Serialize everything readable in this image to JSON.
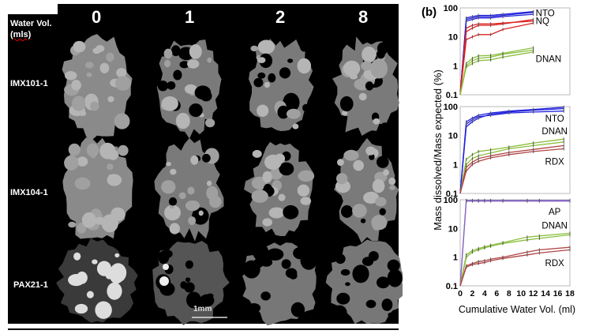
{
  "figure": {
    "corner_label": "Water Vol.",
    "corner_unit": "(mls)",
    "columns": [
      "0",
      "1",
      "2",
      "8"
    ],
    "rows": [
      "IMX101-1",
      "IMX104-1",
      "PAX21-1"
    ],
    "scale_bar": "1mm",
    "panel_label": "(b)"
  },
  "chart_data": [
    {
      "type": "line",
      "yscale": "log",
      "ylim": [
        0.1,
        100
      ],
      "xlim": [
        0,
        18
      ],
      "yticks": [
        "0.1",
        "1",
        "10",
        "100"
      ],
      "ylabel": "Mass dissolved/Mass expected (%)",
      "series": [
        {
          "name": "NTO",
          "color": "#2222dd",
          "x": [
            0,
            1,
            2,
            3,
            5,
            7,
            12
          ],
          "replicates": [
            [
              0.1,
              40,
              45,
              50,
              50,
              55,
              70
            ],
            [
              0.1,
              45,
              50,
              55,
              55,
              60,
              75
            ],
            [
              0.1,
              35,
              40,
              45,
              45,
              50,
              60
            ]
          ]
        },
        {
          "name": "NQ",
          "color": "#dd2222",
          "x": [
            0,
            1,
            2,
            3,
            5,
            7,
            12
          ],
          "replicates": [
            [
              0.1,
              8,
              10,
              12,
              12,
              18,
              30
            ],
            [
              0.1,
              15,
              20,
              25,
              25,
              28,
              40
            ],
            [
              0.1,
              20,
              25,
              28,
              28,
              30,
              35
            ]
          ]
        },
        {
          "name": "DNAN",
          "color": "#8cbf3f",
          "x": [
            0,
            1,
            2,
            3,
            5,
            7,
            12
          ],
          "replicates": [
            [
              0.1,
              0.9,
              1.2,
              1.5,
              1.6,
              2,
              3
            ],
            [
              0.1,
              1.2,
              1.8,
              2.2,
              2.3,
              2.7,
              4.2
            ],
            [
              0.1,
              1,
              1.5,
              1.8,
              2,
              2.5,
              3.5
            ]
          ]
        }
      ]
    },
    {
      "type": "line",
      "yscale": "log",
      "ylim": [
        0.1,
        100
      ],
      "xlim": [
        0,
        18
      ],
      "yticks": [
        "0.1",
        "1",
        "10",
        "100"
      ],
      "series": [
        {
          "name": "NTO",
          "color": "#2222dd",
          "x": [
            0,
            1,
            2,
            3,
            5,
            8,
            12,
            17
          ],
          "replicates": [
            [
              0.1,
              20,
              30,
              40,
              55,
              65,
              75,
              85
            ],
            [
              0.1,
              30,
              40,
              50,
              60,
              70,
              80,
              95
            ],
            [
              0.1,
              25,
              35,
              45,
              50,
              60,
              65,
              70
            ]
          ]
        },
        {
          "name": "DNAN",
          "color": "#8cbf3f",
          "x": [
            0,
            1,
            2,
            3,
            5,
            8,
            12,
            17
          ],
          "replicates": [
            [
              0.1,
              1,
              1.6,
              2,
              2.5,
              3.5,
              4.5,
              6
            ],
            [
              0.1,
              1.5,
              2.2,
              2.8,
              3.2,
              4,
              5.5,
              7.5
            ]
          ]
        },
        {
          "name": "RDX",
          "color": "#b04444",
          "x": [
            0,
            1,
            2,
            3,
            5,
            8,
            12,
            17
          ],
          "replicates": [
            [
              0.1,
              0.6,
              1,
              1.3,
              1.7,
              2.2,
              2.8,
              3.5
            ],
            [
              0.1,
              0.8,
              1.2,
              1.6,
              2,
              2.6,
              3.3,
              4.5
            ]
          ]
        }
      ]
    },
    {
      "type": "line",
      "yscale": "log",
      "ylim": [
        0.1,
        100
      ],
      "xlim": [
        0,
        18
      ],
      "yticks": [
        "0.1",
        "1",
        "10",
        "100"
      ],
      "xticks": [
        "0",
        "2",
        "4",
        "6",
        "8",
        "10",
        "12",
        "14",
        "16",
        "18"
      ],
      "xlabel": "Cumulative Water Vol. (ml)",
      "series": [
        {
          "name": "AP",
          "color": "#8566c4",
          "x": [
            0,
            1,
            2,
            3,
            4,
            5,
            7,
            11,
            13,
            18
          ],
          "replicates": [
            [
              0.1,
              95,
              95,
              95,
              95,
              95,
              95,
              95,
              95,
              95
            ],
            [
              0.1,
              90,
              90,
              90,
              90,
              90,
              90,
              90,
              90,
              90
            ]
          ]
        },
        {
          "name": "DNAN",
          "color": "#8cbf3f",
          "x": [
            0,
            1,
            2,
            3,
            4,
            5,
            7,
            11,
            13,
            18
          ],
          "replicates": [
            [
              0.1,
              1,
              1.5,
              1.8,
              2.1,
              2.4,
              3,
              4,
              4.5,
              6
            ],
            [
              0.1,
              1.2,
              1.7,
              2,
              2.3,
              2.6,
              3.2,
              5,
              5.5,
              6.8
            ]
          ]
        },
        {
          "name": "RDX",
          "color": "#b04444",
          "x": [
            0,
            1,
            2,
            3,
            4,
            5,
            7,
            11,
            13,
            18
          ],
          "replicates": [
            [
              0.1,
              0.45,
              0.55,
              0.6,
              0.65,
              0.75,
              0.9,
              1.2,
              1.4,
              1.8
            ],
            [
              0.1,
              0.5,
              0.6,
              0.7,
              0.75,
              0.85,
              1,
              1.5,
              1.8,
              2.2
            ]
          ]
        }
      ]
    }
  ]
}
